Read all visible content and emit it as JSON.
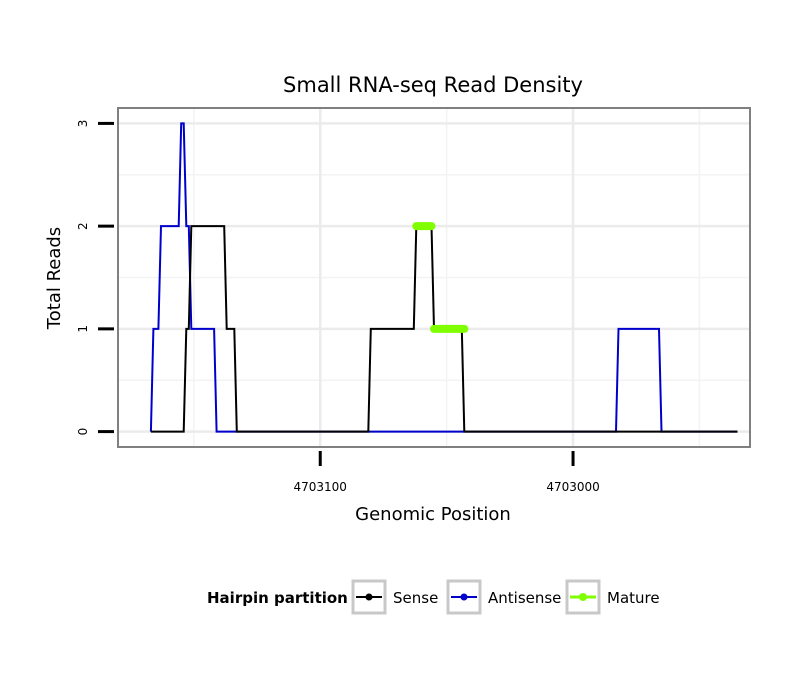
{
  "chart_data": {
    "type": "line",
    "title": "Small RNA-seq Read Density",
    "xlabel": "Genomic Position",
    "ylabel": "Total Reads",
    "x_reversed": true,
    "xlim": [
      4703180,
      4702930
    ],
    "ylim": [
      -0.15,
      3.15
    ],
    "x_ticks": [
      4703100,
      4703000
    ],
    "x_tick_labels": [
      "4703100",
      "4703000"
    ],
    "y_ticks": [
      0,
      1,
      2,
      3
    ],
    "y_tick_labels": [
      "0",
      "1",
      "2",
      "3"
    ],
    "minor_x_grid": [
      4703150,
      4703050,
      4702950
    ],
    "minor_y_grid": [
      0.5,
      1.5,
      2.5
    ],
    "grid": true,
    "legend": {
      "title": "Hairpin partition",
      "placement": "bottom",
      "entries": [
        {
          "label": "Sense",
          "color": "#000000"
        },
        {
          "label": "Antisense",
          "color": "#0000cc"
        },
        {
          "label": "Mature",
          "color": "#7fff00"
        }
      ]
    },
    "series": [
      {
        "name": "Sense",
        "color": "#000000",
        "x": [
          4703167,
          4703154,
          4703153,
          4703152,
          4703151,
          4703150,
          4703147,
          4703144,
          4703138,
          4703137,
          4703134,
          4703133,
          4703132,
          4703131,
          4703081,
          4703080,
          4703063,
          4703062,
          4703056,
          4703055,
          4703044,
          4703043,
          4702935
        ],
        "y": [
          0,
          0,
          1,
          1,
          2,
          2,
          2,
          2,
          2,
          1,
          1,
          0,
          0,
          0,
          0,
          1,
          1,
          2,
          2,
          1,
          1,
          0,
          0
        ]
      },
      {
        "name": "Antisense",
        "color": "#0000cc",
        "x": [
          4703167,
          4703166,
          4703164,
          4703163,
          4703158,
          4703157,
          4703156,
          4703155,
          4703154,
          4703153,
          4703152,
          4703151,
          4703150,
          4703143,
          4703142,
          4703141,
          4703131,
          4703081,
          4703044,
          4702983,
          4702982,
          4702966,
          4702965,
          4702935
        ],
        "y": [
          0,
          1,
          1,
          2,
          2,
          2,
          2,
          3,
          3,
          2,
          2,
          1,
          1,
          1,
          1,
          0,
          0,
          0,
          0,
          0,
          1,
          1,
          0,
          0
        ]
      },
      {
        "name": "Mature",
        "color": "#7fff00",
        "segments": [
          {
            "x": [
              4703062,
              4703056
            ],
            "y": [
              2,
              2
            ]
          },
          {
            "x": [
              4703055,
              4703043
            ],
            "y": [
              1,
              1
            ]
          }
        ]
      }
    ]
  }
}
